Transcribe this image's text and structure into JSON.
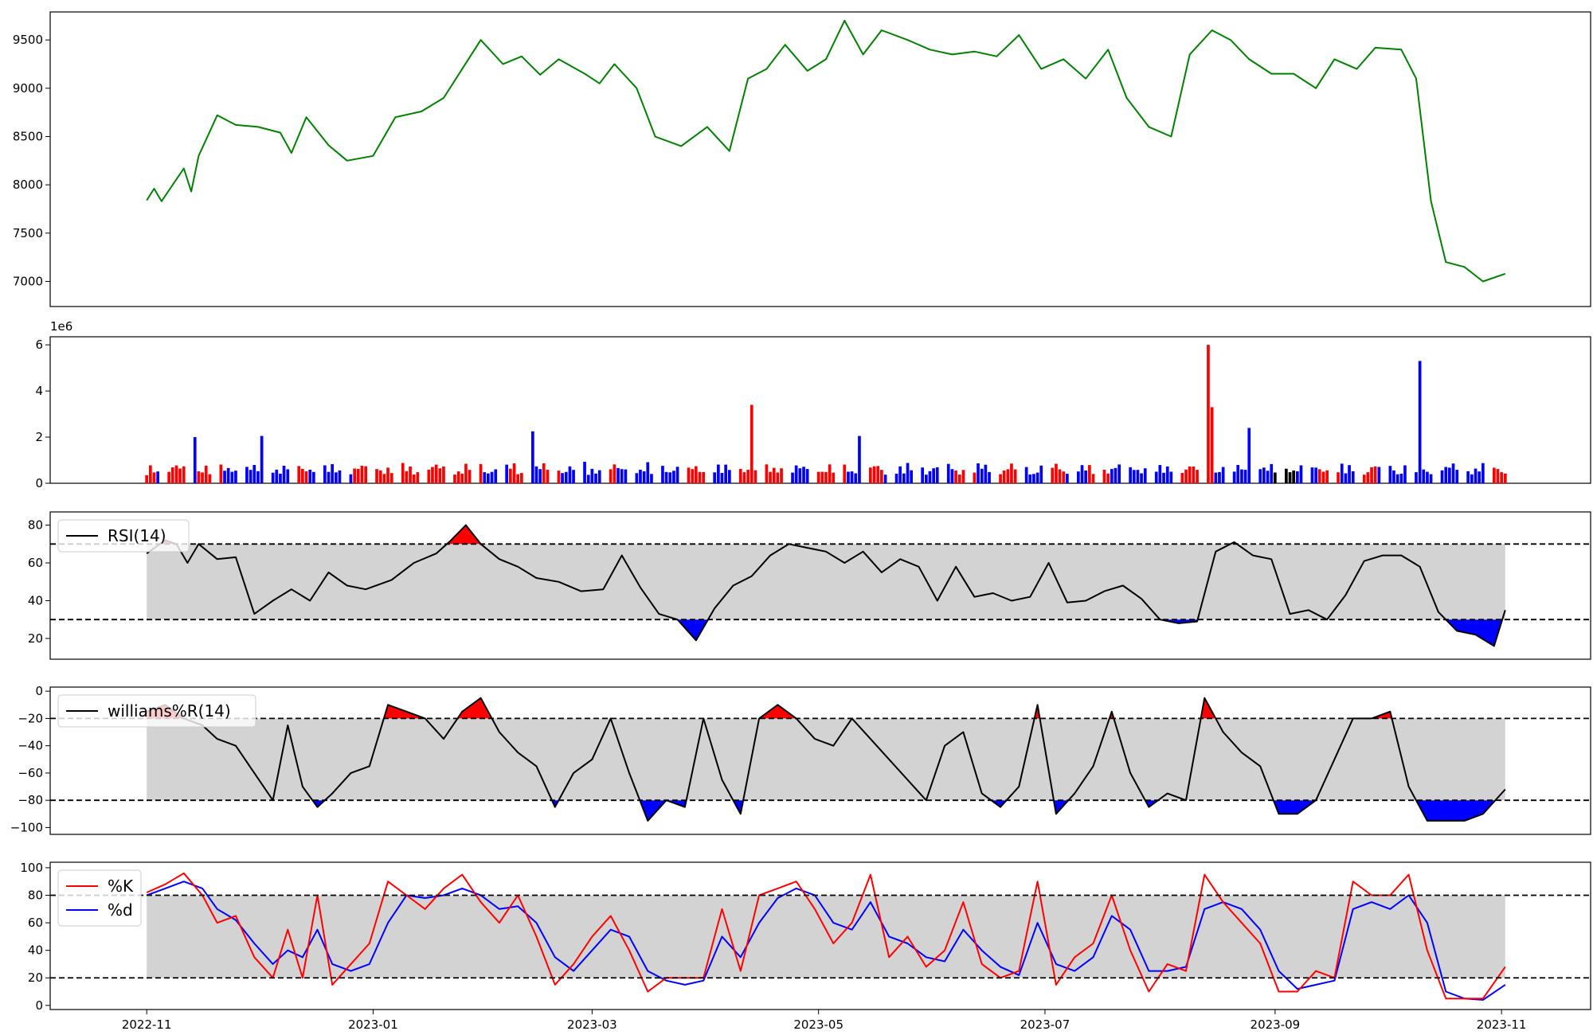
{
  "colors": {
    "price": "#008000",
    "up": "#ff0000",
    "down": "#0000ff",
    "flat": "#000000",
    "band": "#d3d3d3",
    "line": "#000000",
    "k": "#ff0000",
    "d": "#0000ff"
  },
  "chart_data": [
    {
      "type": "line",
      "panel": "price",
      "yticks": [
        7000,
        7500,
        8000,
        8500,
        9000,
        9500
      ],
      "ylim": [
        6740,
        9790
      ],
      "series": [
        {
          "x": [
            "2022-11-01",
            "2022-11-03",
            "2022-11-05",
            "2022-11-11",
            "2022-11-13",
            "2022-11-15",
            "2022-11-20",
            "2022-11-25",
            "2022-12-01",
            "2022-12-07",
            "2022-12-10",
            "2022-12-14",
            "2022-12-20",
            "2022-12-25",
            "2023-01-01",
            "2023-01-07",
            "2023-01-14",
            "2023-01-20",
            "2023-01-25",
            "2023-01-30",
            "2023-02-05",
            "2023-02-10",
            "2023-02-15",
            "2023-02-20",
            "2023-02-27",
            "2023-03-03",
            "2023-03-07",
            "2023-03-13",
            "2023-03-18",
            "2023-03-25",
            "2023-04-01",
            "2023-04-07",
            "2023-04-12",
            "2023-04-17",
            "2023-04-22",
            "2023-04-28",
            "2023-05-03",
            "2023-05-08",
            "2023-05-13",
            "2023-05-18",
            "2023-05-25",
            "2023-05-31",
            "2023-06-06",
            "2023-06-12",
            "2023-06-18",
            "2023-06-24",
            "2023-06-30",
            "2023-07-06",
            "2023-07-12",
            "2023-07-18",
            "2023-07-23",
            "2023-07-29",
            "2023-08-04",
            "2023-08-09",
            "2023-08-15",
            "2023-08-20",
            "2023-08-25",
            "2023-08-31",
            "2023-09-06",
            "2023-09-12",
            "2023-09-17",
            "2023-09-23",
            "2023-09-28",
            "2023-10-05",
            "2023-10-09",
            "2023-10-13",
            "2023-10-17",
            "2023-10-22",
            "2023-10-27",
            "2023-11-02"
          ],
          "y": [
            7840,
            7960,
            7830,
            8170,
            7930,
            8300,
            8720,
            8620,
            8600,
            8540,
            8330,
            8700,
            8410,
            8250,
            8300,
            8700,
            8760,
            8900,
            9200,
            9500,
            9250,
            9330,
            9140,
            9300,
            9150,
            9050,
            9250,
            9000,
            8500,
            8400,
            8600,
            8350,
            9100,
            9200,
            9450,
            9180,
            9300,
            9700,
            9350,
            9600,
            9500,
            9400,
            9350,
            9380,
            9330,
            9550,
            9200,
            9300,
            9100,
            9400,
            8900,
            8600,
            8500,
            9350,
            9600,
            9500,
            9300,
            9150,
            9150,
            9000,
            9300,
            9200,
            9420,
            9400,
            9100,
            7830,
            7200,
            7150,
            7000,
            7080
          ]
        }
      ]
    },
    {
      "type": "bar",
      "panel": "volume",
      "offset_label": "1e6",
      "yticks": [
        0,
        2,
        4,
        6
      ],
      "ylim": [
        0,
        6.35
      ]
    },
    {
      "type": "line",
      "panel": "rsi",
      "yticks": [
        20,
        40,
        60,
        80
      ],
      "ylim": [
        9,
        87
      ],
      "levels": [
        30,
        70
      ],
      "series": [
        {
          "name": "RSI(14)",
          "x": [
            "2022-11-01",
            "2022-11-06",
            "2022-11-09",
            "2022-11-12",
            "2022-11-15",
            "2022-11-20",
            "2022-11-25",
            "2022-11-30",
            "2022-12-05",
            "2022-12-10",
            "2022-12-15",
            "2022-12-20",
            "2022-12-25",
            "2022-12-30",
            "2023-01-06",
            "2023-01-12",
            "2023-01-18",
            "2023-01-22",
            "2023-01-26",
            "2023-01-30",
            "2023-02-04",
            "2023-02-09",
            "2023-02-14",
            "2023-02-20",
            "2023-02-26",
            "2023-03-04",
            "2023-03-09",
            "2023-03-14",
            "2023-03-19",
            "2023-03-24",
            "2023-03-29",
            "2023-04-03",
            "2023-04-08",
            "2023-04-13",
            "2023-04-18",
            "2023-04-23",
            "2023-04-28",
            "2023-05-03",
            "2023-05-08",
            "2023-05-13",
            "2023-05-18",
            "2023-05-23",
            "2023-05-28",
            "2023-06-02",
            "2023-06-07",
            "2023-06-12",
            "2023-06-17",
            "2023-06-22",
            "2023-06-27",
            "2023-07-02",
            "2023-07-07",
            "2023-07-12",
            "2023-07-17",
            "2023-07-22",
            "2023-07-27",
            "2023-08-01",
            "2023-08-06",
            "2023-08-11",
            "2023-08-16",
            "2023-08-21",
            "2023-08-26",
            "2023-08-31",
            "2023-09-05",
            "2023-09-10",
            "2023-09-15",
            "2023-09-20",
            "2023-09-25",
            "2023-09-30",
            "2023-10-05",
            "2023-10-10",
            "2023-10-15",
            "2023-10-20",
            "2023-10-25",
            "2023-10-30",
            "2023-11-02"
          ],
          "y": [
            65,
            72,
            70,
            60,
            70,
            62,
            63,
            33,
            40,
            46,
            40,
            55,
            48,
            46,
            51,
            60,
            65,
            72,
            80,
            70,
            62,
            58,
            52,
            50,
            45,
            46,
            64,
            47,
            33,
            30,
            19,
            36,
            48,
            53,
            64,
            70,
            68,
            66,
            60,
            66,
            55,
            62,
            58,
            40,
            58,
            42,
            44,
            40,
            42,
            60,
            39,
            40,
            45,
            48,
            41,
            30,
            28,
            29,
            66,
            71,
            64,
            62,
            33,
            35,
            30,
            43,
            61,
            64,
            64,
            58,
            34,
            24,
            22,
            16,
            35
          ]
        }
      ]
    },
    {
      "type": "line",
      "panel": "williams",
      "yticks": [
        -100,
        -80,
        -60,
        -40,
        -20,
        0
      ],
      "ylim": [
        -105,
        3
      ],
      "levels": [
        -20,
        -80
      ],
      "series": [
        {
          "name": "williams%R(14)",
          "x": [
            "2022-11-01",
            "2022-11-06",
            "2022-11-11",
            "2022-11-16",
            "2022-11-20",
            "2022-11-25",
            "2022-11-30",
            "2022-12-05",
            "2022-12-09",
            "2022-12-13",
            "2022-12-17",
            "2022-12-21",
            "2022-12-26",
            "2022-12-31",
            "2023-01-05",
            "2023-01-10",
            "2023-01-15",
            "2023-01-20",
            "2023-01-25",
            "2023-01-30",
            "2023-02-04",
            "2023-02-09",
            "2023-02-14",
            "2023-02-19",
            "2023-02-24",
            "2023-03-01",
            "2023-03-06",
            "2023-03-11",
            "2023-03-16",
            "2023-03-21",
            "2023-03-26",
            "2023-03-31",
            "2023-04-05",
            "2023-04-10",
            "2023-04-15",
            "2023-04-20",
            "2023-04-25",
            "2023-04-30",
            "2023-05-05",
            "2023-05-10",
            "2023-05-15",
            "2023-05-20",
            "2023-05-25",
            "2023-05-30",
            "2023-06-04",
            "2023-06-09",
            "2023-06-14",
            "2023-06-19",
            "2023-06-24",
            "2023-06-29",
            "2023-07-04",
            "2023-07-09",
            "2023-07-14",
            "2023-07-19",
            "2023-07-24",
            "2023-07-29",
            "2023-08-03",
            "2023-08-08",
            "2023-08-13",
            "2023-08-18",
            "2023-08-23",
            "2023-08-28",
            "2023-09-02",
            "2023-09-07",
            "2023-09-12",
            "2023-09-17",
            "2023-09-22",
            "2023-09-27",
            "2023-10-02",
            "2023-10-07",
            "2023-10-12",
            "2023-10-17",
            "2023-10-22",
            "2023-10-27",
            "2023-11-02"
          ],
          "y": [
            -15,
            -10,
            -20,
            -25,
            -35,
            -40,
            -60,
            -80,
            -25,
            -70,
            -85,
            -75,
            -60,
            -55,
            -10,
            -15,
            -20,
            -35,
            -15,
            -5,
            -30,
            -45,
            -55,
            -85,
            -60,
            -50,
            -20,
            -60,
            -95,
            -80,
            -85,
            -20,
            -65,
            -90,
            -20,
            -10,
            -20,
            -35,
            -40,
            -20,
            -35,
            -50,
            -65,
            -80,
            -40,
            -30,
            -75,
            -85,
            -70,
            -10,
            -90,
            -75,
            -55,
            -15,
            -60,
            -85,
            -75,
            -80,
            -5,
            -30,
            -45,
            -55,
            -90,
            -90,
            -80,
            -50,
            -20,
            -20,
            -15,
            -70,
            -95,
            -95,
            -95,
            -90,
            -72
          ]
        }
      ]
    },
    {
      "type": "line",
      "panel": "stochastic",
      "yticks": [
        0,
        20,
        40,
        60,
        80,
        100
      ],
      "ylim": [
        -3,
        104
      ],
      "levels": [
        20,
        80
      ],
      "xticks": [
        "2022-11",
        "2023-01",
        "2023-03",
        "2023-05",
        "2023-07",
        "2023-09",
        "2023-11"
      ],
      "series": [
        {
          "name": "%K",
          "x": [
            "2022-11-01",
            "2022-11-06",
            "2022-11-11",
            "2022-11-16",
            "2022-11-20",
            "2022-11-25",
            "2022-11-30",
            "2022-12-05",
            "2022-12-09",
            "2022-12-13",
            "2022-12-17",
            "2022-12-21",
            "2022-12-26",
            "2022-12-31",
            "2023-01-05",
            "2023-01-10",
            "2023-01-15",
            "2023-01-20",
            "2023-01-25",
            "2023-01-30",
            "2023-02-04",
            "2023-02-09",
            "2023-02-14",
            "2023-02-19",
            "2023-02-24",
            "2023-03-01",
            "2023-03-06",
            "2023-03-11",
            "2023-03-16",
            "2023-03-21",
            "2023-03-26",
            "2023-03-31",
            "2023-04-05",
            "2023-04-10",
            "2023-04-15",
            "2023-04-20",
            "2023-04-25",
            "2023-04-30",
            "2023-05-05",
            "2023-05-10",
            "2023-05-15",
            "2023-05-20",
            "2023-05-25",
            "2023-05-30",
            "2023-06-04",
            "2023-06-09",
            "2023-06-14",
            "2023-06-19",
            "2023-06-24",
            "2023-06-29",
            "2023-07-04",
            "2023-07-09",
            "2023-07-14",
            "2023-07-19",
            "2023-07-24",
            "2023-07-29",
            "2023-08-03",
            "2023-08-08",
            "2023-08-13",
            "2023-08-18",
            "2023-08-23",
            "2023-08-28",
            "2023-09-02",
            "2023-09-07",
            "2023-09-12",
            "2023-09-17",
            "2023-09-22",
            "2023-09-27",
            "2023-10-02",
            "2023-10-07",
            "2023-10-12",
            "2023-10-17",
            "2023-10-22",
            "2023-10-27",
            "2023-11-02"
          ],
          "y": [
            82,
            88,
            96,
            80,
            60,
            65,
            35,
            20,
            55,
            20,
            80,
            15,
            30,
            45,
            90,
            80,
            70,
            85,
            95,
            75,
            60,
            80,
            50,
            15,
            30,
            50,
            65,
            40,
            10,
            20,
            20,
            20,
            70,
            25,
            80,
            85,
            90,
            70,
            45,
            60,
            95,
            35,
            50,
            28,
            40,
            75,
            30,
            20,
            25,
            90,
            15,
            35,
            45,
            80,
            40,
            10,
            30,
            25,
            95,
            75,
            60,
            45,
            10,
            10,
            25,
            20,
            90,
            80,
            80,
            95,
            40,
            5,
            5,
            5,
            28
          ]
        },
        {
          "name": "%d",
          "x": [
            "2022-11-01",
            "2022-11-06",
            "2022-11-11",
            "2022-11-16",
            "2022-11-20",
            "2022-11-25",
            "2022-11-30",
            "2022-12-05",
            "2022-12-09",
            "2022-12-13",
            "2022-12-17",
            "2022-12-21",
            "2022-12-26",
            "2022-12-31",
            "2023-01-05",
            "2023-01-10",
            "2023-01-15",
            "2023-01-20",
            "2023-01-25",
            "2023-01-30",
            "2023-02-04",
            "2023-02-09",
            "2023-02-14",
            "2023-02-19",
            "2023-02-24",
            "2023-03-01",
            "2023-03-06",
            "2023-03-11",
            "2023-03-16",
            "2023-03-21",
            "2023-03-26",
            "2023-03-31",
            "2023-04-05",
            "2023-04-10",
            "2023-04-15",
            "2023-04-20",
            "2023-04-25",
            "2023-04-30",
            "2023-05-05",
            "2023-05-10",
            "2023-05-15",
            "2023-05-20",
            "2023-05-25",
            "2023-05-30",
            "2023-06-04",
            "2023-06-09",
            "2023-06-14",
            "2023-06-19",
            "2023-06-24",
            "2023-06-29",
            "2023-07-04",
            "2023-07-09",
            "2023-07-14",
            "2023-07-19",
            "2023-07-24",
            "2023-07-29",
            "2023-08-03",
            "2023-08-08",
            "2023-08-13",
            "2023-08-18",
            "2023-08-23",
            "2023-08-28",
            "2023-09-02",
            "2023-09-07",
            "2023-09-12",
            "2023-09-17",
            "2023-09-22",
            "2023-09-27",
            "2023-10-02",
            "2023-10-07",
            "2023-10-12",
            "2023-10-17",
            "2023-10-22",
            "2023-10-27",
            "2023-11-02"
          ],
          "y": [
            80,
            85,
            90,
            85,
            70,
            62,
            45,
            30,
            40,
            35,
            55,
            30,
            25,
            30,
            60,
            80,
            78,
            80,
            85,
            80,
            70,
            72,
            60,
            35,
            25,
            40,
            55,
            50,
            25,
            18,
            15,
            18,
            50,
            35,
            60,
            78,
            85,
            80,
            60,
            55,
            75,
            50,
            45,
            35,
            32,
            55,
            40,
            28,
            22,
            60,
            30,
            25,
            35,
            65,
            55,
            25,
            25,
            28,
            70,
            75,
            70,
            55,
            25,
            12,
            15,
            18,
            70,
            75,
            70,
            80,
            60,
            10,
            5,
            4,
            15
          ]
        }
      ]
    }
  ]
}
